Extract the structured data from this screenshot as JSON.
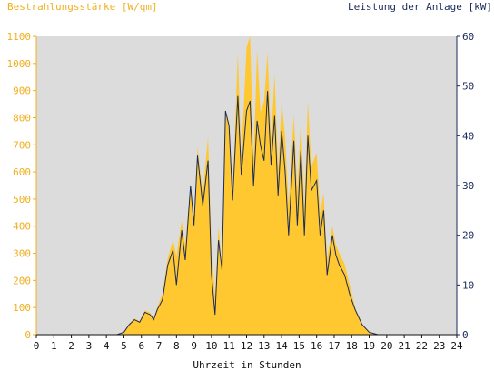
{
  "colors": {
    "plot_background": "#dcdcdc",
    "irradiance_fill": "#ffc830",
    "irradiance_text": "#f0b020",
    "power_line": "#1a2a5a",
    "axis_text": "#111111"
  },
  "chart_data": {
    "type": "area",
    "title_left": "Bestrahlungsstärke [W/qm]",
    "title_right": "Leistung der Anlage [kW]",
    "xlabel": "Uhrzeit in Stunden",
    "xlim": [
      0,
      24
    ],
    "x_ticks": [
      "0",
      "1",
      "2",
      "3",
      "4",
      "5",
      "6",
      "7",
      "8",
      "9",
      "10",
      "11",
      "12",
      "13",
      "14",
      "15",
      "16",
      "17",
      "18",
      "19",
      "20",
      "21",
      "22",
      "23",
      "24"
    ],
    "y_left_lim": [
      0,
      1100
    ],
    "y_left_ticks": [
      "0",
      "100",
      "200",
      "300",
      "400",
      "500",
      "600",
      "700",
      "800",
      "900",
      "1000",
      "1100"
    ],
    "y_right_lim": [
      0,
      60
    ],
    "y_right_ticks": [
      "0",
      "10",
      "20",
      "30",
      "40",
      "50",
      "60"
    ],
    "grid": false,
    "series": [
      {
        "axis": "left",
        "kind": "area",
        "x": [
          0,
          4.6,
          5,
          5.3,
          5.6,
          5.9,
          6.2,
          6.5,
          6.7,
          6.9,
          7.2,
          7.5,
          7.8,
          8,
          8.3,
          8.5,
          8.8,
          9,
          9.2,
          9.5,
          9.8,
          10,
          10.2,
          10.4,
          10.6,
          10.8,
          11,
          11.2,
          11.5,
          11.7,
          12,
          12.2,
          12.4,
          12.6,
          12.8,
          13,
          13.2,
          13.4,
          13.6,
          13.8,
          14,
          14.2,
          14.4,
          14.7,
          14.9,
          15.1,
          15.3,
          15.5,
          15.7,
          16,
          16.2,
          16.4,
          16.6,
          16.9,
          17.1,
          17.3,
          17.6,
          17.9,
          18.2,
          18.6,
          19,
          19.5,
          20,
          20.3,
          24
        ],
        "values": [
          0,
          0,
          10,
          40,
          60,
          50,
          90,
          80,
          60,
          100,
          150,
          280,
          350,
          290,
          420,
          330,
          560,
          430,
          690,
          520,
          730,
          330,
          140,
          400,
          250,
          830,
          780,
          520,
          1040,
          650,
          1060,
          1100,
          640,
          1050,
          820,
          860,
          1040,
          720,
          960,
          610,
          860,
          730,
          480,
          810,
          530,
          790,
          470,
          860,
          620,
          670,
          450,
          520,
          280,
          400,
          330,
          300,
          260,
          180,
          100,
          40,
          10,
          0,
          0,
          0,
          0
        ]
      },
      {
        "axis": "right",
        "kind": "line",
        "x": [
          0,
          4.6,
          5,
          5.3,
          5.6,
          5.9,
          6.2,
          6.5,
          6.7,
          6.9,
          7.2,
          7.5,
          7.8,
          8,
          8.3,
          8.5,
          8.8,
          9,
          9.2,
          9.5,
          9.8,
          10,
          10.2,
          10.4,
          10.6,
          10.8,
          11,
          11.2,
          11.5,
          11.7,
          12,
          12.2,
          12.4,
          12.6,
          12.8,
          13,
          13.2,
          13.4,
          13.6,
          13.8,
          14,
          14.2,
          14.4,
          14.7,
          14.9,
          15.1,
          15.3,
          15.5,
          15.7,
          16,
          16.2,
          16.4,
          16.6,
          16.9,
          17.1,
          17.3,
          17.6,
          17.9,
          18.2,
          18.6,
          19,
          19.5,
          20,
          20.3,
          24
        ],
        "values": [
          0,
          0,
          0.5,
          2,
          3,
          2.5,
          4.5,
          4,
          3,
          5,
          7,
          14,
          17,
          10,
          21,
          15,
          30,
          22,
          36,
          26,
          35,
          12,
          4,
          19,
          13,
          45,
          42,
          27,
          48,
          32,
          45,
          47,
          30,
          43,
          38,
          35,
          49,
          34,
          44,
          28,
          41,
          33,
          20,
          39,
          22,
          37,
          20,
          40,
          29,
          31,
          20,
          25,
          12,
          20,
          16,
          14,
          12,
          8,
          5,
          2,
          0.5,
          0,
          0,
          0,
          0
        ]
      }
    ]
  }
}
